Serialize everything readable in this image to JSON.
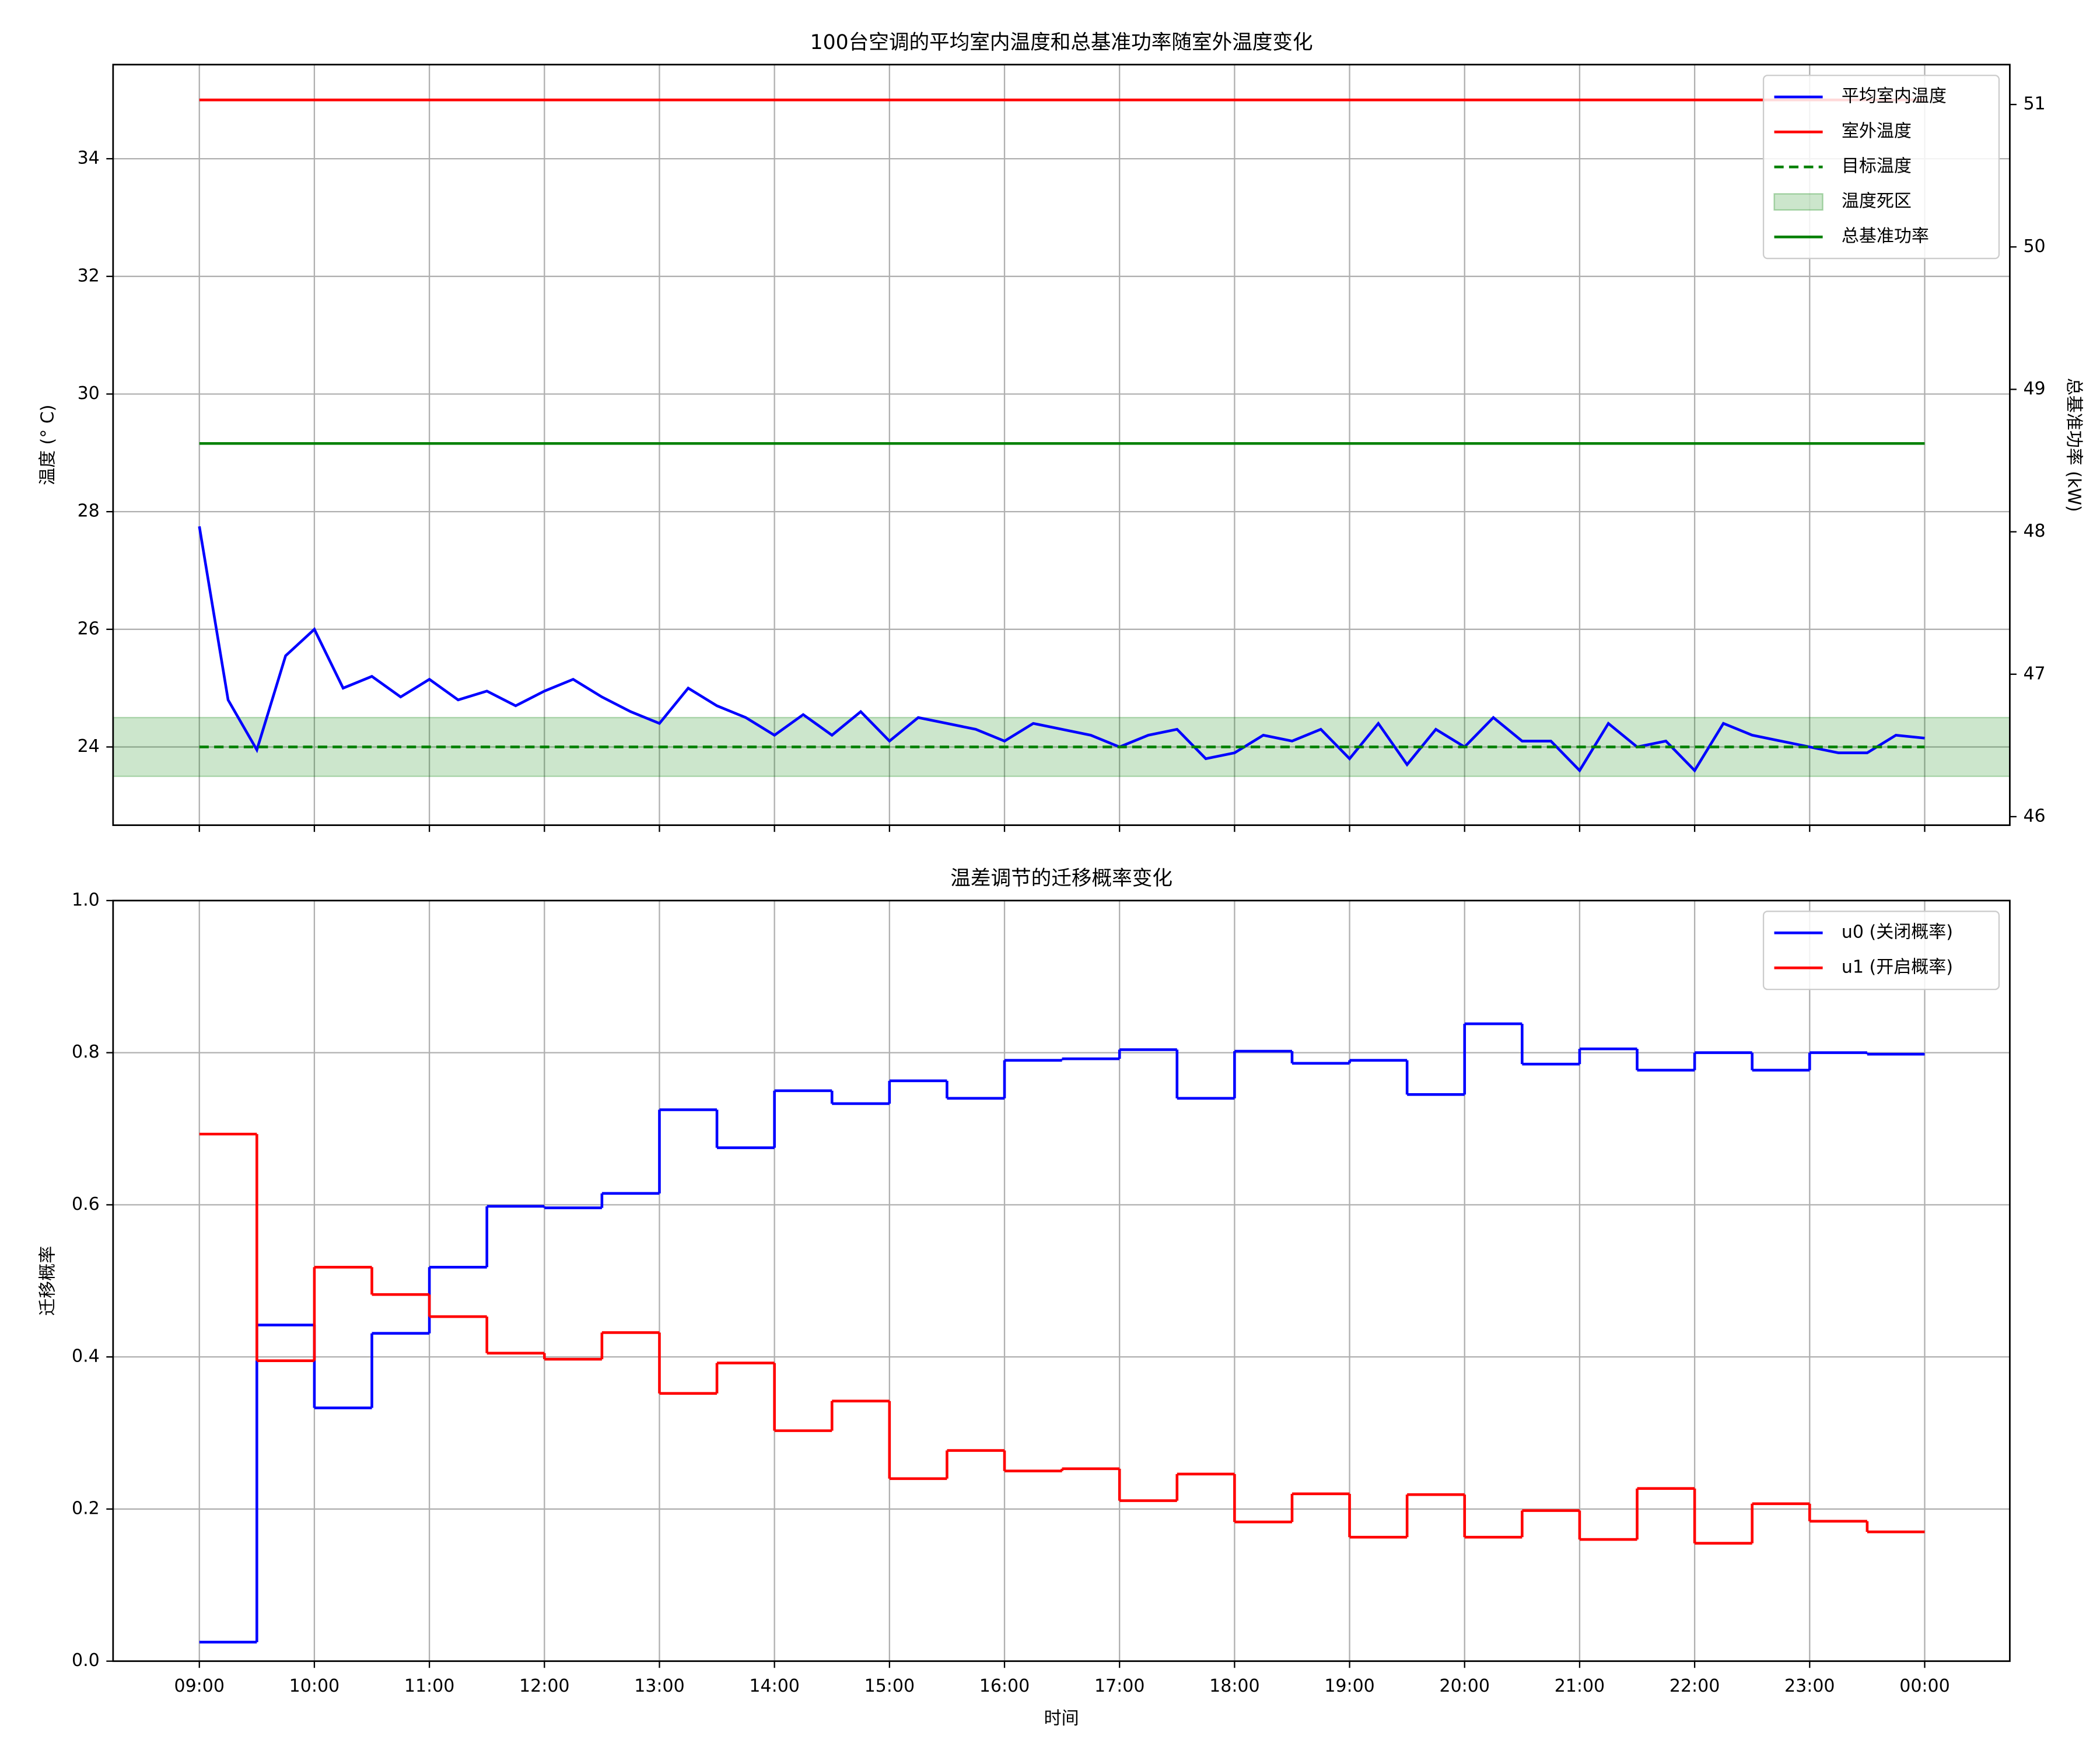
{
  "chart_data": [
    {
      "type": "line",
      "title": "100台空调的平均室内温度和总基准功率随室外温度变化",
      "ylabel": "温度 (° C)",
      "ylabel_color": "blue",
      "y2label": "总基准功率 (kW)",
      "y2label_color": "green",
      "xlim": [
        8.25,
        24.74
      ],
      "xticks": [
        9,
        10,
        11,
        12,
        13,
        14,
        15,
        16,
        17,
        18,
        19,
        20,
        21,
        22,
        23,
        24
      ],
      "ylim": [
        22.67,
        35.6
      ],
      "yticks": [
        24,
        26,
        28,
        30,
        32,
        34
      ],
      "y2lim": [
        45.94,
        51.28
      ],
      "y2ticks": [
        46,
        47,
        48,
        49,
        50,
        51
      ],
      "grid": true,
      "legend": "upper right",
      "series": [
        {
          "name": "平均室内温度",
          "color": "blue",
          "x": [
            9,
            9.25,
            9.5,
            9.75,
            10,
            10.25,
            10.5,
            10.75,
            11,
            11.25,
            11.5,
            11.75,
            12,
            12.25,
            12.5,
            12.75,
            13,
            13.25,
            13.5,
            13.75,
            14,
            14.25,
            14.5,
            14.75,
            15,
            15.25,
            15.5,
            15.75,
            16,
            16.25,
            16.5,
            16.75,
            17,
            17.25,
            17.5,
            17.75,
            18,
            18.25,
            18.5,
            18.75,
            19,
            19.25,
            19.5,
            19.75,
            20,
            20.25,
            20.5,
            20.75,
            21,
            21.25,
            21.5,
            21.75,
            22,
            22.25,
            22.5,
            22.75,
            23,
            23.25,
            23.5,
            23.75,
            24
          ],
          "values": [
            27.75,
            24.8,
            23.95,
            25.55,
            26.0,
            25.0,
            25.2,
            24.85,
            25.15,
            24.8,
            24.95,
            24.7,
            24.95,
            25.15,
            24.85,
            24.6,
            24.4,
            25.0,
            24.7,
            24.5,
            24.2,
            24.55,
            24.2,
            24.6,
            24.1,
            24.5,
            24.4,
            24.3,
            24.1,
            24.4,
            24.3,
            24.2,
            24.0,
            24.2,
            24.3,
            23.8,
            23.9,
            24.2,
            24.1,
            24.3,
            23.8,
            24.4,
            23.7,
            24.3,
            24.0,
            24.5,
            24.1,
            24.1,
            23.6,
            24.4,
            24.0,
            24.1,
            23.6,
            24.4,
            24.2,
            24.1,
            24.0,
            23.9,
            23.9,
            24.2,
            24.15
          ]
        },
        {
          "name": "室外温度",
          "color": "red",
          "x": [
            9,
            24
          ],
          "values": [
            35,
            35
          ]
        },
        {
          "name": "目标温度",
          "color": "green",
          "dashed": true,
          "x": [
            9,
            24
          ],
          "values": [
            24,
            24
          ]
        },
        {
          "name": "总基准功率",
          "color": "green",
          "axis": "y2",
          "x": [
            9,
            24
          ],
          "values": [
            48.62,
            48.62
          ]
        }
      ],
      "bands": [
        {
          "name": "温度死区",
          "color": "green",
          "range": [
            23.5,
            24.5
          ]
        }
      ]
    },
    {
      "type": "step",
      "title": "温差调节的迁移概率变化",
      "xlabel": "时间",
      "ylabel": "迁移概率",
      "xlim": [
        8.25,
        24.74
      ],
      "xticks": [
        {
          "value": 9,
          "label": "09:00"
        },
        {
          "value": 10,
          "label": "10:00"
        },
        {
          "value": 11,
          "label": "11:00"
        },
        {
          "value": 12,
          "label": "12:00"
        },
        {
          "value": 13,
          "label": "13:00"
        },
        {
          "value": 14,
          "label": "14:00"
        },
        {
          "value": 15,
          "label": "15:00"
        },
        {
          "value": 16,
          "label": "16:00"
        },
        {
          "value": 17,
          "label": "17:00"
        },
        {
          "value": 18,
          "label": "18:00"
        },
        {
          "value": 19,
          "label": "19:00"
        },
        {
          "value": 20,
          "label": "20:00"
        },
        {
          "value": 21,
          "label": "21:00"
        },
        {
          "value": 22,
          "label": "22:00"
        },
        {
          "value": 23,
          "label": "23:00"
        },
        {
          "value": 24,
          "label": "00:00"
        }
      ],
      "ylim": [
        0,
        1
      ],
      "yticks": [
        {
          "value": 0,
          "label": "0.0"
        },
        {
          "value": 0.2,
          "label": "0.2"
        },
        {
          "value": 0.4,
          "label": "0.4"
        },
        {
          "value": 0.6,
          "label": "0.6"
        },
        {
          "value": 0.8,
          "label": "0.8"
        },
        {
          "value": 1,
          "label": "1.0"
        }
      ],
      "grid": true,
      "legend": "upper right",
      "x": [
        9,
        9.5,
        10,
        10.5,
        11,
        11.5,
        12,
        12.5,
        13,
        13.5,
        14,
        14.5,
        15,
        15.5,
        16,
        16.5,
        17,
        17.5,
        18,
        18.5,
        19,
        19.5,
        20,
        20.5,
        21,
        21.5,
        22,
        22.5,
        23,
        23.5,
        24
      ],
      "series": [
        {
          "name": "u0 (关闭概率)",
          "color": "blue",
          "values": [
            0.025,
            0.442,
            0.333,
            0.431,
            0.518,
            0.598,
            0.596,
            0.615,
            0.725,
            0.675,
            0.75,
            0.733,
            0.763,
            0.74,
            0.79,
            0.792,
            0.804,
            0.74,
            0.802,
            0.786,
            0.79,
            0.745,
            0.838,
            0.785,
            0.805,
            0.777,
            0.8,
            0.777,
            0.8,
            0.798,
            0.798
          ]
        },
        {
          "name": "u1 (开启概率)",
          "color": "red",
          "values": [
            0.693,
            0.395,
            0.518,
            0.482,
            0.453,
            0.405,
            0.397,
            0.432,
            0.352,
            0.392,
            0.303,
            0.342,
            0.24,
            0.277,
            0.25,
            0.253,
            0.211,
            0.246,
            0.183,
            0.22,
            0.163,
            0.219,
            0.163,
            0.198,
            0.16,
            0.227,
            0.155,
            0.207,
            0.184,
            0.17,
            0.17
          ]
        }
      ]
    }
  ]
}
